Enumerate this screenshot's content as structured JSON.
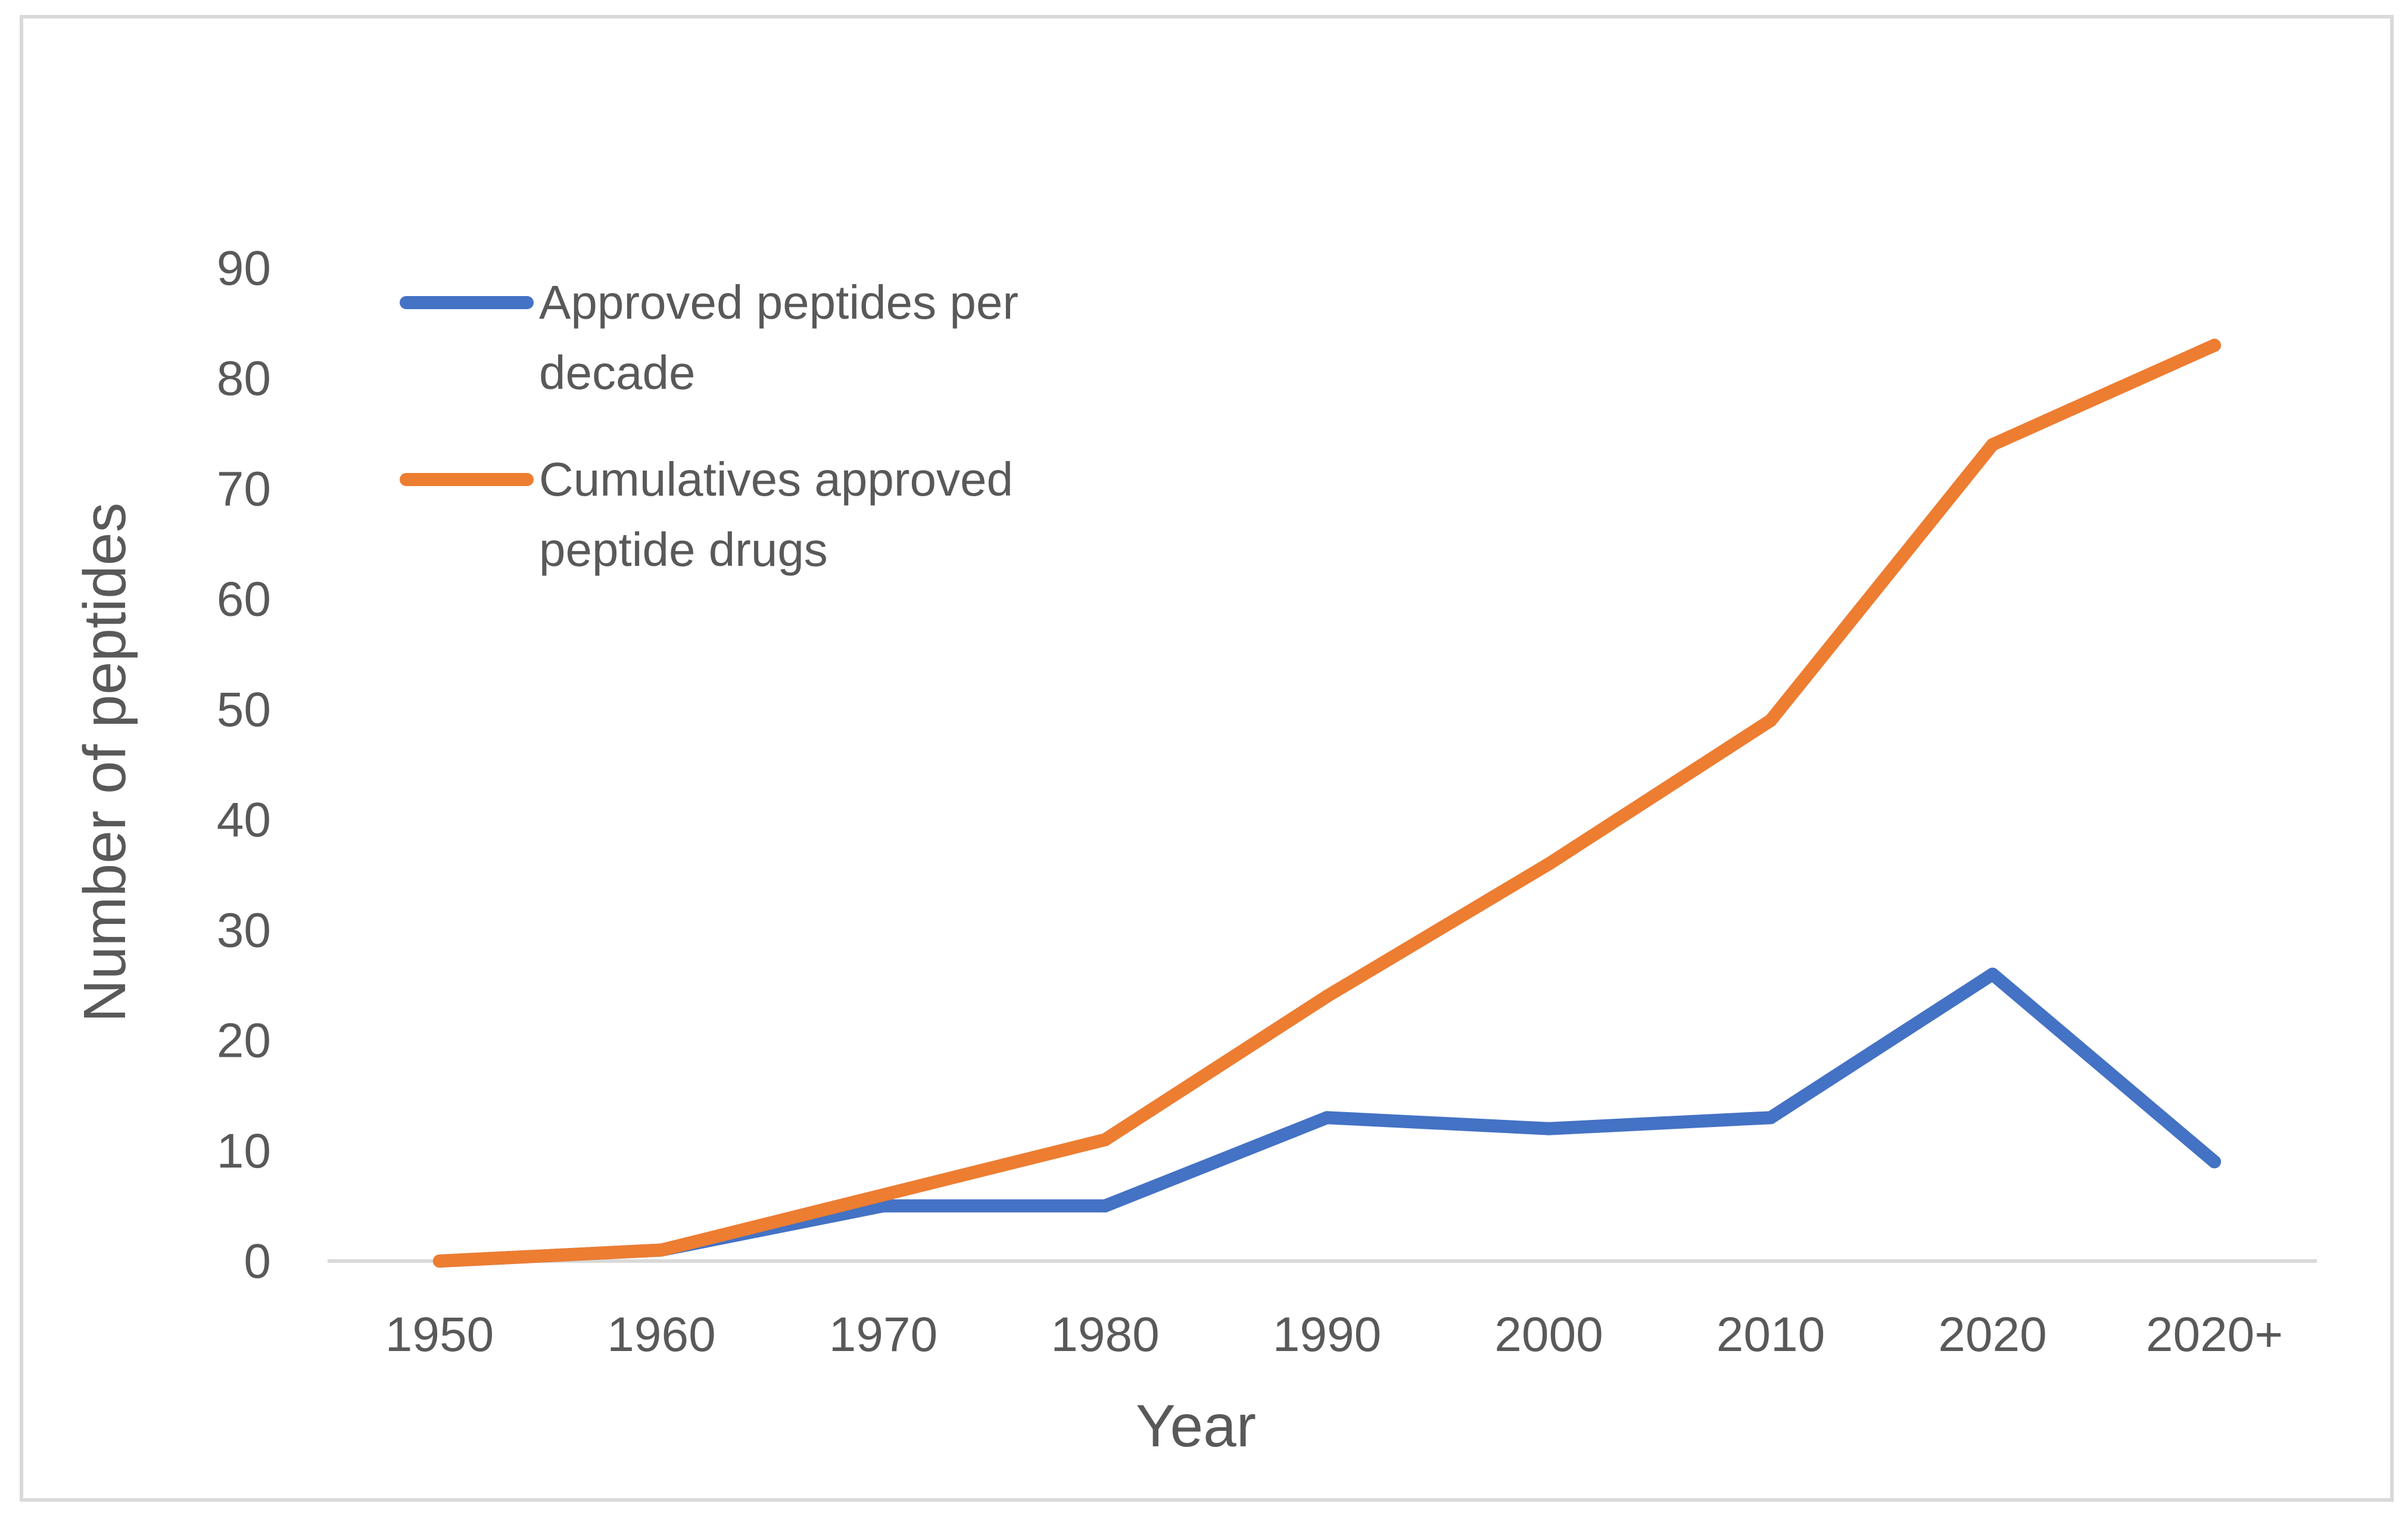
{
  "chart_data": {
    "type": "line",
    "title": "",
    "xlabel": "Year",
    "ylabel": "Number of peptides",
    "categories": [
      "1950",
      "1960",
      "1970",
      "1980",
      "1990",
      "2000",
      "2010",
      "2020",
      "2020+"
    ],
    "ylim": [
      0,
      90
    ],
    "yticks": [
      "0",
      "10",
      "20",
      "30",
      "40",
      "50",
      "60",
      "70",
      "80",
      "90"
    ],
    "grid": false,
    "legend_position": "top-left",
    "series": [
      {
        "name": "Approved peptides per decade",
        "legend_lines": [
          "Approved peptides per",
          "decade"
        ],
        "color": "#4472C4",
        "values": [
          0,
          1,
          5,
          5,
          13,
          12,
          13,
          26,
          9
        ]
      },
      {
        "name": "Cumulatives approved peptide drugs",
        "legend_lines": [
          "Cumulatives approved",
          "peptide drugs"
        ],
        "color": "#ED7D31",
        "values": [
          0,
          1,
          6,
          11,
          24,
          36,
          49,
          74,
          83
        ]
      }
    ]
  }
}
